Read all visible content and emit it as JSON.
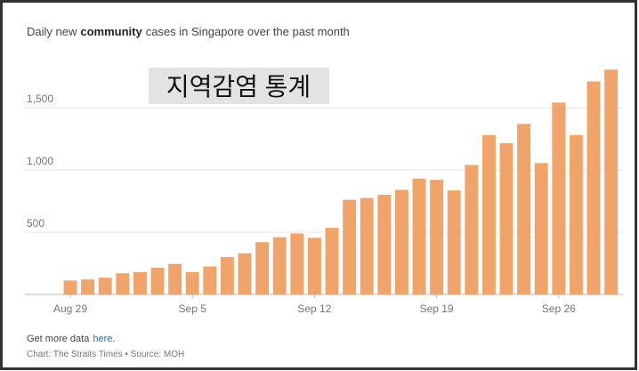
{
  "chart_data": {
    "type": "bar",
    "title_parts": [
      "Daily new",
      "community",
      "cases in Singapore over the past month"
    ],
    "overlay": "지역감염 통계",
    "footer_parts": [
      "Get more data",
      "here",
      "."
    ],
    "source": "Chart: The Straits Times • Source: MOH",
    "categories": [
      "Aug 29",
      null,
      null,
      null,
      null,
      null,
      null,
      "Sep 5",
      null,
      null,
      null,
      null,
      null,
      null,
      "Sep 12",
      null,
      null,
      null,
      null,
      null,
      null,
      "Sep 19",
      null,
      null,
      null,
      null,
      null,
      null,
      "Sep 26",
      null,
      null,
      null
    ],
    "values": [
      112,
      120,
      135,
      170,
      180,
      215,
      245,
      180,
      225,
      300,
      330,
      420,
      460,
      490,
      455,
      535,
      760,
      775,
      800,
      840,
      930,
      920,
      835,
      1040,
      1280,
      1215,
      1370,
      1055,
      1540,
      1280,
      1710,
      1805
    ],
    "color": "#f0a46a",
    "ylim": [
      0,
      1850
    ],
    "yticks": [
      500,
      {
        "value": 1000,
        "label": "1,000"
      },
      {
        "value": 1500,
        "label": "1,500"
      }
    ],
    "grid": true
  }
}
